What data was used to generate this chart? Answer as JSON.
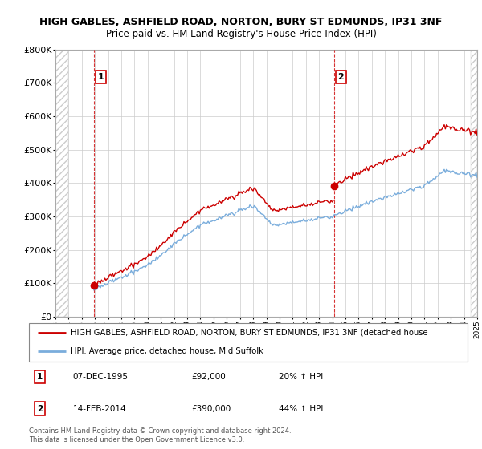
{
  "title": "HIGH GABLES, ASHFIELD ROAD, NORTON, BURY ST EDMUNDS, IP31 3NF",
  "subtitle": "Price paid vs. HM Land Registry's House Price Index (HPI)",
  "legend_line1": "HIGH GABLES, ASHFIELD ROAD, NORTON, BURY ST EDMUNDS, IP31 3NF (detached house",
  "legend_line2": "HPI: Average price, detached house, Mid Suffolk",
  "sale1_label": "1",
  "sale1_date": "07-DEC-1995",
  "sale1_price": "£92,000",
  "sale1_hpi": "20% ↑ HPI",
  "sale1_year": 1995.92,
  "sale1_value": 92000,
  "sale2_label": "2",
  "sale2_date": "14-FEB-2014",
  "sale2_price": "£390,000",
  "sale2_hpi": "44% ↑ HPI",
  "sale2_year": 2014.12,
  "sale2_value": 390000,
  "ylim": [
    0,
    800000
  ],
  "xlim": [
    1993,
    2025
  ],
  "yticks": [
    0,
    100000,
    200000,
    300000,
    400000,
    500000,
    600000,
    700000,
    800000
  ],
  "ytick_labels": [
    "£0",
    "£100K",
    "£200K",
    "£300K",
    "£400K",
    "£500K",
    "£600K",
    "£700K",
    "£800K"
  ],
  "red_color": "#cc0000",
  "blue_color": "#7aaddc",
  "background_color": "#ffffff",
  "grid_color": "#cccccc",
  "hatch_color": "#cccccc",
  "footer": "Contains HM Land Registry data © Crown copyright and database right 2024.\nThis data is licensed under the Open Government Licence v3.0."
}
